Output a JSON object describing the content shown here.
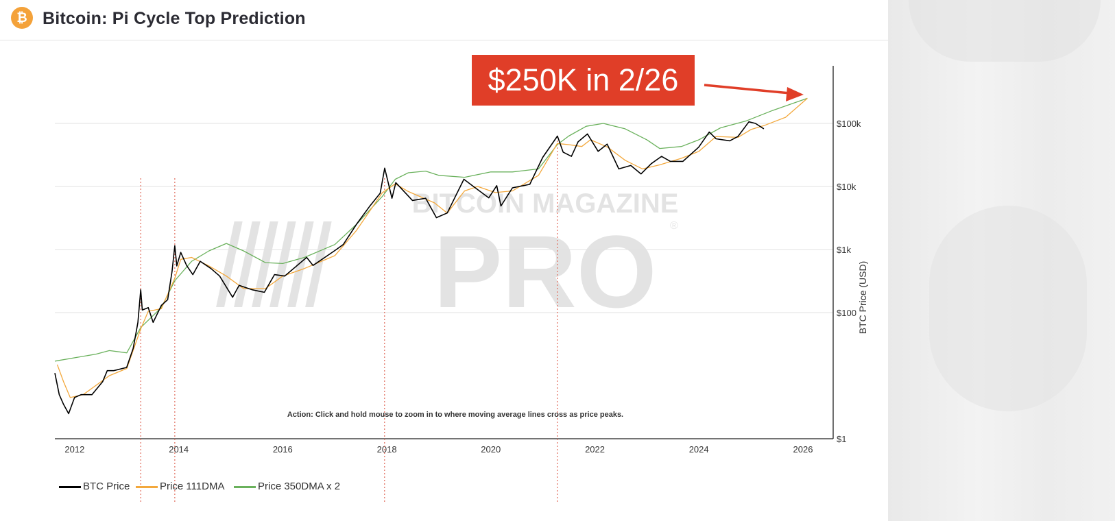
{
  "header": {
    "title": "Bitcoin: Pi Cycle Top Prediction",
    "logo_symbol": "₿"
  },
  "annotation": {
    "text": "$250K in 2/26",
    "color": "#e03e28"
  },
  "chart_data": {
    "type": "line",
    "title": "Bitcoin: Pi Cycle Top Prediction",
    "xlabel": "",
    "ylabel": "BTC Price (USD)",
    "y_scale": "log",
    "xlim": [
      "2011-08-15",
      "2026-08-01"
    ],
    "ylim": [
      1,
      1000000
    ],
    "x_ticks": [
      {
        "label": "2012",
        "value": "2012-01-01"
      },
      {
        "label": "2014",
        "value": "2014-01-01"
      },
      {
        "label": "2016",
        "value": "2016-01-01"
      },
      {
        "label": "2018",
        "value": "2018-01-01"
      },
      {
        "label": "2020",
        "value": "2020-01-01"
      },
      {
        "label": "2022",
        "value": "2022-01-01"
      },
      {
        "label": "2024",
        "value": "2024-01-01"
      },
      {
        "label": "2026",
        "value": "2026-01-01"
      }
    ],
    "y_ticks": [
      {
        "label": "$1",
        "value": 1
      },
      {
        "label": "$100",
        "value": 100
      },
      {
        "label": "$1k",
        "value": 1000
      },
      {
        "label": "$10k",
        "value": 10000
      },
      {
        "label": "$100k",
        "value": 100000
      }
    ],
    "grid": "horizontal",
    "legend_position": "bottom-left",
    "action_note": "Action: Click and hold mouse to zoom in to where moving average lines cross as price peaks.",
    "watermark": {
      "line1": "BITCOIN MAGAZINE",
      "line2": "PRO",
      "mark": "®"
    },
    "pi_cycle_tops": [
      "2013-04-09",
      "2013-12-04",
      "2017-12-16",
      "2021-04-12"
    ],
    "annotation_target": {
      "date": "2026-02-01",
      "value": 250000
    },
    "series": [
      {
        "name": "BTC Price",
        "color": "#000000",
        "points": [
          [
            "2011-08-15",
            11
          ],
          [
            "2011-09-15",
            5
          ],
          [
            "2011-10-15",
            3.5
          ],
          [
            "2011-11-20",
            2.5
          ],
          [
            "2011-12-31",
            4.5
          ],
          [
            "2012-02-15",
            5
          ],
          [
            "2012-05-01",
            5
          ],
          [
            "2012-07-15",
            8
          ],
          [
            "2012-08-17",
            12
          ],
          [
            "2012-10-01",
            12
          ],
          [
            "2012-12-31",
            13.5
          ],
          [
            "2013-02-15",
            27
          ],
          [
            "2013-03-20",
            70
          ],
          [
            "2013-04-09",
            230
          ],
          [
            "2013-04-20",
            110
          ],
          [
            "2013-06-01",
            120
          ],
          [
            "2013-07-05",
            70
          ],
          [
            "2013-09-01",
            130
          ],
          [
            "2013-10-15",
            160
          ],
          [
            "2013-11-15",
            450
          ],
          [
            "2013-12-04",
            1150
          ],
          [
            "2013-12-18",
            550
          ],
          [
            "2014-01-15",
            900
          ],
          [
            "2014-02-25",
            560
          ],
          [
            "2014-04-10",
            400
          ],
          [
            "2014-06-01",
            650
          ],
          [
            "2014-08-15",
            500
          ],
          [
            "2014-10-15",
            380
          ],
          [
            "2015-01-14",
            175
          ],
          [
            "2015-03-01",
            270
          ],
          [
            "2015-06-01",
            230
          ],
          [
            "2015-08-25",
            210
          ],
          [
            "2015-11-04",
            400
          ],
          [
            "2016-01-15",
            380
          ],
          [
            "2016-06-17",
            750
          ],
          [
            "2016-08-01",
            560
          ],
          [
            "2016-12-31",
            960
          ],
          [
            "2017-03-01",
            1200
          ],
          [
            "2017-06-01",
            2500
          ],
          [
            "2017-09-01",
            4800
          ],
          [
            "2017-11-15",
            7800
          ],
          [
            "2017-12-17",
            19500
          ],
          [
            "2018-02-06",
            6500
          ],
          [
            "2018-03-05",
            11500
          ],
          [
            "2018-06-30",
            6000
          ],
          [
            "2018-10-01",
            6500
          ],
          [
            "2018-12-15",
            3200
          ],
          [
            "2019-03-01",
            3800
          ],
          [
            "2019-06-26",
            13000
          ],
          [
            "2019-09-01",
            10000
          ],
          [
            "2019-12-18",
            6600
          ],
          [
            "2020-02-12",
            10300
          ],
          [
            "2020-03-12",
            4900
          ],
          [
            "2020-06-01",
            9500
          ],
          [
            "2020-10-01",
            10800
          ],
          [
            "2020-12-31",
            29000
          ],
          [
            "2021-04-13",
            63000
          ],
          [
            "2021-05-23",
            35000
          ],
          [
            "2021-07-20",
            30000
          ],
          [
            "2021-09-05",
            51000
          ],
          [
            "2021-11-10",
            68000
          ],
          [
            "2022-01-24",
            36000
          ],
          [
            "2022-03-28",
            47000
          ],
          [
            "2022-06-18",
            19000
          ],
          [
            "2022-09-10",
            21500
          ],
          [
            "2022-11-21",
            15800
          ],
          [
            "2023-02-01",
            23000
          ],
          [
            "2023-04-14",
            30000
          ],
          [
            "2023-06-15",
            25000
          ],
          [
            "2023-09-11",
            25000
          ],
          [
            "2023-12-31",
            42000
          ],
          [
            "2024-03-14",
            73000
          ],
          [
            "2024-05-01",
            57000
          ],
          [
            "2024-08-05",
            53000
          ],
          [
            "2024-10-01",
            62000
          ],
          [
            "2024-12-17",
            106000
          ],
          [
            "2025-02-01",
            100000
          ],
          [
            "2025-04-01",
            82000
          ]
        ]
      },
      {
        "name": "Price 111DMA",
        "color": "#f3a83c",
        "points": [
          [
            "2011-09-01",
            15
          ],
          [
            "2011-10-15",
            8
          ],
          [
            "2011-12-01",
            4.5
          ],
          [
            "2012-03-01",
            5
          ],
          [
            "2012-09-01",
            10
          ],
          [
            "2013-01-01",
            13
          ],
          [
            "2013-04-09",
            55
          ],
          [
            "2013-06-01",
            105
          ],
          [
            "2013-09-01",
            115
          ],
          [
            "2013-12-04",
            350
          ],
          [
            "2014-01-15",
            700
          ],
          [
            "2014-04-01",
            750
          ],
          [
            "2014-08-01",
            550
          ],
          [
            "2014-12-01",
            380
          ],
          [
            "2015-04-01",
            240
          ],
          [
            "2015-09-01",
            240
          ],
          [
            "2016-01-01",
            380
          ],
          [
            "2016-06-01",
            500
          ],
          [
            "2017-01-01",
            800
          ],
          [
            "2017-06-01",
            2000
          ],
          [
            "2017-12-01",
            8000
          ],
          [
            "2018-03-01",
            11000
          ],
          [
            "2018-06-01",
            8300
          ],
          [
            "2018-12-01",
            5500
          ],
          [
            "2019-03-01",
            3800
          ],
          [
            "2019-07-01",
            8500
          ],
          [
            "2019-10-01",
            10000
          ],
          [
            "2020-02-01",
            8000
          ],
          [
            "2020-06-01",
            8500
          ],
          [
            "2020-12-01",
            15000
          ],
          [
            "2021-04-12",
            48000
          ],
          [
            "2021-07-01",
            46000
          ],
          [
            "2021-10-01",
            43000
          ],
          [
            "2021-12-01",
            55000
          ],
          [
            "2022-04-01",
            42000
          ],
          [
            "2022-08-01",
            26000
          ],
          [
            "2022-12-01",
            19000
          ],
          [
            "2023-04-01",
            22000
          ],
          [
            "2023-09-01",
            28000
          ],
          [
            "2024-01-01",
            36000
          ],
          [
            "2024-05-01",
            62000
          ],
          [
            "2024-10-01",
            60000
          ],
          [
            "2025-01-01",
            80000
          ],
          [
            "2025-04-01",
            92000
          ],
          [
            "2025-09-01",
            125000
          ],
          [
            "2026-02-01",
            250000
          ]
        ]
      },
      {
        "name": "Price 350DMA x 2",
        "color": "#6ab15c",
        "points": [
          [
            "2011-08-15",
            17
          ],
          [
            "2012-06-01",
            22
          ],
          [
            "2012-09-01",
            25
          ],
          [
            "2013-01-01",
            23
          ],
          [
            "2013-04-09",
            58
          ],
          [
            "2013-09-01",
            120
          ],
          [
            "2013-12-04",
            320
          ],
          [
            "2014-04-01",
            650
          ],
          [
            "2014-08-01",
            950
          ],
          [
            "2014-12-01",
            1250
          ],
          [
            "2015-04-01",
            950
          ],
          [
            "2015-09-01",
            620
          ],
          [
            "2016-01-01",
            600
          ],
          [
            "2016-06-01",
            750
          ],
          [
            "2017-01-01",
            1200
          ],
          [
            "2017-06-01",
            2500
          ],
          [
            "2017-12-01",
            7000
          ],
          [
            "2018-03-01",
            13000
          ],
          [
            "2018-06-01",
            16500
          ],
          [
            "2018-10-01",
            17500
          ],
          [
            "2019-01-01",
            15000
          ],
          [
            "2019-07-01",
            14000
          ],
          [
            "2020-01-01",
            17000
          ],
          [
            "2020-06-01",
            17000
          ],
          [
            "2020-12-01",
            19000
          ],
          [
            "2021-04-12",
            46000
          ],
          [
            "2021-07-01",
            63000
          ],
          [
            "2021-11-01",
            90000
          ],
          [
            "2022-03-01",
            100000
          ],
          [
            "2022-08-01",
            82000
          ],
          [
            "2023-01-01",
            55000
          ],
          [
            "2023-04-01",
            40000
          ],
          [
            "2023-09-01",
            43000
          ],
          [
            "2024-01-01",
            55000
          ],
          [
            "2024-06-01",
            85000
          ],
          [
            "2024-12-01",
            110000
          ],
          [
            "2025-06-01",
            160000
          ],
          [
            "2026-02-01",
            250000
          ]
        ]
      }
    ]
  }
}
